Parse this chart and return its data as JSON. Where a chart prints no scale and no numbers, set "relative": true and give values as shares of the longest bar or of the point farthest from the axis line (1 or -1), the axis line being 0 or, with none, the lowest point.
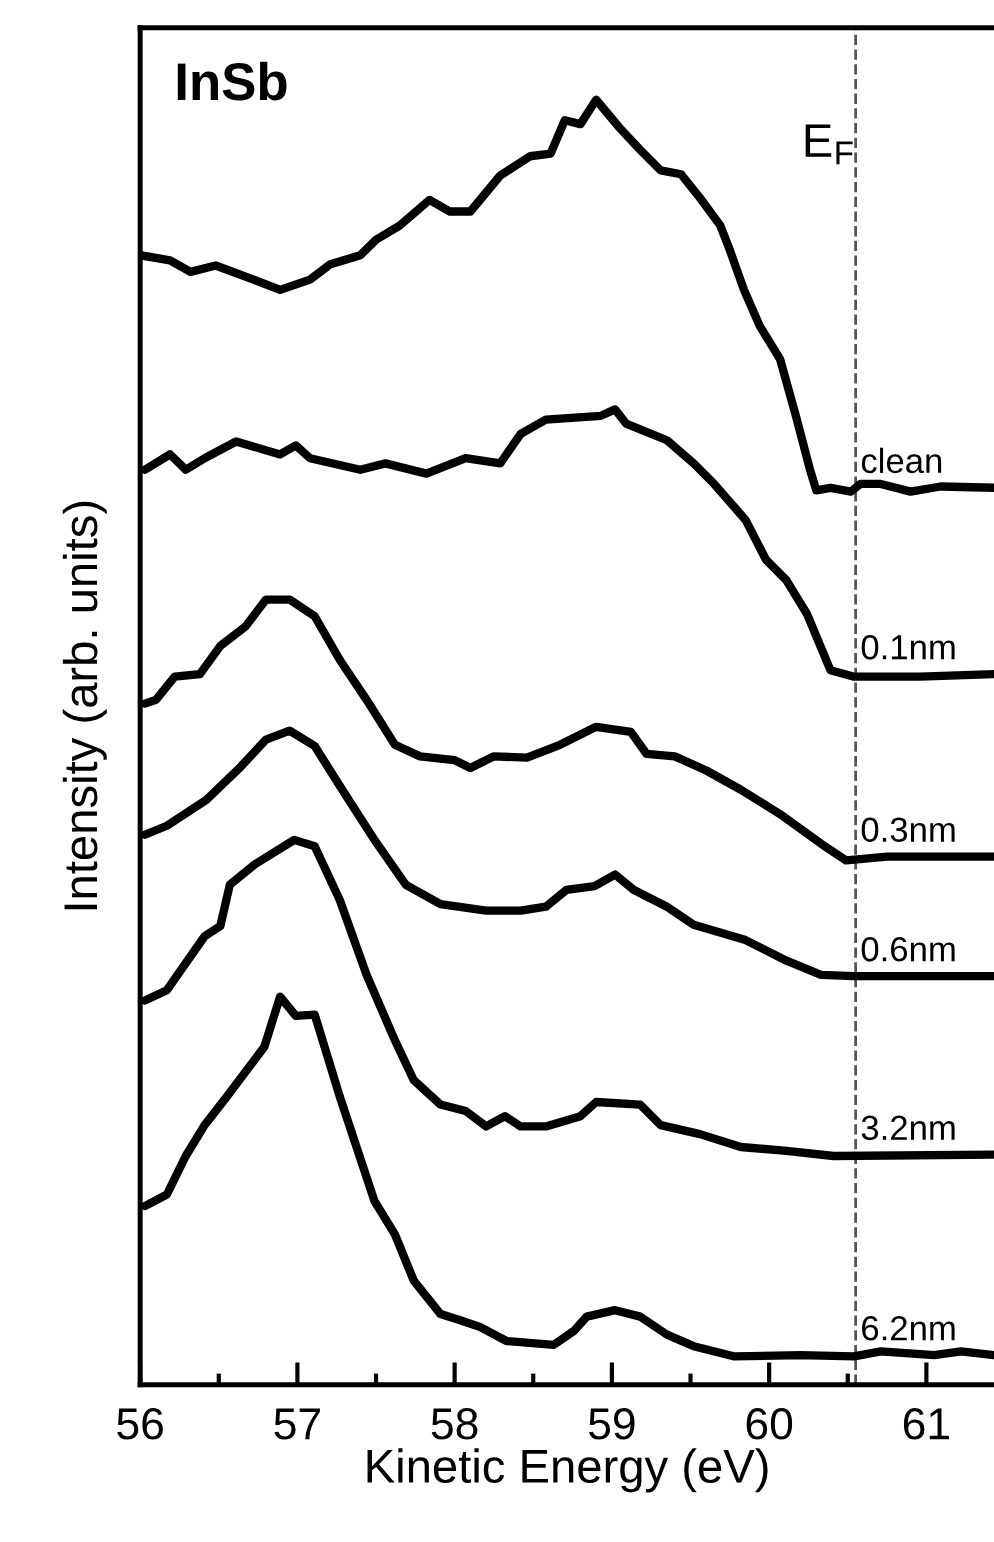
{
  "chart_data": {
    "type": "line",
    "relative": true,
    "xlabel": "Kinetic Energy (eV)",
    "ylabel": "Intensity (arb. units)",
    "annotations": [
      "InSb"
    ],
    "xlim": [
      56,
      61.43
    ],
    "xticks": [
      56,
      {
        "value": 56.5,
        "label": null
      },
      57,
      {
        "value": 57.5,
        "label": null
      },
      58,
      {
        "value": 58.5,
        "label": null
      },
      59,
      {
        "value": 59.5,
        "label": null
      },
      60,
      {
        "value": 60.5,
        "label": null
      },
      61
    ],
    "tick_labels": "x",
    "grid": false,
    "legend": false,
    "marker": "none",
    "line_style": "solid",
    "ref_lines": [
      {
        "axis": "x",
        "value": 60.55,
        "label": "E$_{F}$",
        "color": "#555555",
        "line_style": "dashed"
      }
    ],
    "series": [
      {
        "name": "clean",
        "color": "#000000",
        "x": [
          56.0,
          56.19,
          56.32,
          56.48,
          56.7,
          56.89,
          57.08,
          57.21,
          57.4,
          57.5,
          57.65,
          57.84,
          57.97,
          58.1,
          58.29,
          58.48,
          58.61,
          58.7,
          58.8,
          58.9,
          59.05,
          59.18,
          59.31,
          59.44,
          59.57,
          59.69,
          59.75,
          59.84,
          59.94,
          60.07,
          60.17,
          60.26,
          60.3,
          60.39,
          60.52,
          60.58,
          60.71,
          60.9,
          61.09,
          61.43
        ],
        "values": [
          0.879,
          0.875,
          0.866,
          0.871,
          0.861,
          0.852,
          0.86,
          0.872,
          0.879,
          0.891,
          0.902,
          0.922,
          0.913,
          0.913,
          0.941,
          0.956,
          0.958,
          0.984,
          0.981,
          1.0,
          0.978,
          0.961,
          0.945,
          0.942,
          0.922,
          0.902,
          0.883,
          0.852,
          0.824,
          0.798,
          0.754,
          0.712,
          0.696,
          0.698,
          0.695,
          0.701,
          0.701,
          0.695,
          0.699,
          0.698
        ]
      },
      {
        "name": "0.1nm",
        "color": "#000000",
        "x": [
          56.03,
          56.19,
          56.29,
          56.41,
          56.61,
          56.89,
          56.99,
          57.08,
          57.4,
          57.56,
          57.82,
          58.07,
          58.29,
          58.42,
          58.58,
          58.93,
          59.02,
          59.09,
          59.35,
          59.52,
          59.65,
          59.85,
          59.98,
          60.11,
          60.24,
          60.39,
          60.54,
          60.96,
          61.43
        ],
        "values": [
          0.712,
          0.724,
          0.712,
          0.721,
          0.734,
          0.724,
          0.731,
          0.721,
          0.712,
          0.717,
          0.709,
          0.721,
          0.717,
          0.74,
          0.751,
          0.754,
          0.759,
          0.748,
          0.735,
          0.717,
          0.701,
          0.673,
          0.642,
          0.626,
          0.6,
          0.556,
          0.551,
          0.551,
          0.553
        ]
      },
      {
        "name": "0.3nm",
        "color": "#000000",
        "x": [
          56.03,
          56.1,
          56.22,
          56.38,
          56.51,
          56.67,
          56.8,
          56.95,
          57.11,
          57.27,
          57.44,
          57.62,
          57.78,
          58.0,
          58.1,
          58.25,
          58.46,
          58.67,
          58.9,
          59.12,
          59.22,
          59.4,
          59.6,
          59.82,
          60.07,
          60.33,
          60.49,
          60.75,
          61.43
        ],
        "values": [
          0.53,
          0.533,
          0.551,
          0.553,
          0.575,
          0.59,
          0.611,
          0.611,
          0.598,
          0.564,
          0.533,
          0.498,
          0.489,
          0.486,
          0.48,
          0.489,
          0.488,
          0.498,
          0.512,
          0.508,
          0.491,
          0.489,
          0.478,
          0.463,
          0.444,
          0.421,
          0.408,
          0.411,
          0.411
        ]
      },
      {
        "name": "0.6nm",
        "color": "#000000",
        "x": [
          56.03,
          56.17,
          56.42,
          56.64,
          56.8,
          56.95,
          57.11,
          57.27,
          57.49,
          57.69,
          57.91,
          58.2,
          58.42,
          58.58,
          58.71,
          58.89,
          59.02,
          59.14,
          59.35,
          59.52,
          59.85,
          60.11,
          60.33,
          60.54,
          61.43
        ],
        "values": [
          0.428,
          0.435,
          0.455,
          0.481,
          0.502,
          0.509,
          0.497,
          0.466,
          0.424,
          0.389,
          0.374,
          0.369,
          0.369,
          0.372,
          0.385,
          0.388,
          0.397,
          0.385,
          0.372,
          0.358,
          0.346,
          0.33,
          0.319,
          0.318,
          0.318
        ]
      },
      {
        "name": "3.2nm",
        "color": "#000000",
        "x": [
          56.03,
          56.17,
          56.41,
          56.51,
          56.57,
          56.73,
          56.98,
          57.11,
          57.27,
          57.44,
          57.62,
          57.74,
          57.91,
          58.07,
          58.2,
          58.32,
          58.42,
          58.58,
          58.8,
          58.9,
          59.18,
          59.31,
          59.56,
          59.82,
          60.11,
          60.41,
          61.43
        ],
        "values": [
          0.299,
          0.307,
          0.349,
          0.357,
          0.389,
          0.405,
          0.424,
          0.419,
          0.377,
          0.319,
          0.268,
          0.237,
          0.218,
          0.213,
          0.201,
          0.209,
          0.201,
          0.201,
          0.209,
          0.22,
          0.218,
          0.202,
          0.195,
          0.185,
          0.182,
          0.178,
          0.179
        ]
      },
      {
        "name": "6.2nm",
        "color": "#000000",
        "x": [
          56.03,
          56.17,
          56.29,
          56.41,
          56.55,
          56.79,
          56.89,
          56.99,
          57.11,
          57.27,
          57.49,
          57.62,
          57.74,
          57.91,
          58.04,
          58.16,
          58.33,
          58.63,
          58.76,
          58.84,
          59.02,
          59.18,
          59.35,
          59.52,
          59.78,
          60.2,
          60.54,
          60.71,
          61.05,
          61.22,
          61.43
        ],
        "values": [
          0.139,
          0.148,
          0.178,
          0.202,
          0.224,
          0.263,
          0.302,
          0.287,
          0.288,
          0.224,
          0.143,
          0.117,
          0.081,
          0.055,
          0.05,
          0.045,
          0.034,
          0.031,
          0.042,
          0.053,
          0.058,
          0.053,
          0.039,
          0.03,
          0.022,
          0.023,
          0.022,
          0.026,
          0.023,
          0.026,
          0.023
        ]
      }
    ]
  }
}
